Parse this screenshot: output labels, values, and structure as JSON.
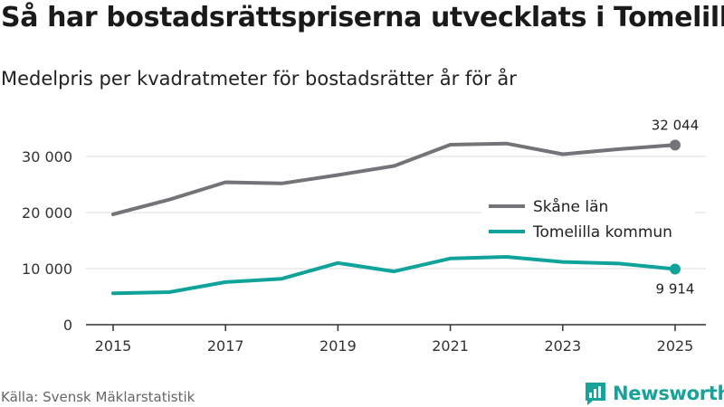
{
  "header": {
    "title": "Så har bostadsrättspriserna utvecklats i Tomelilla",
    "subtitle": "Medelpris per kvadratmeter för bostadsrätter år för år"
  },
  "footer": {
    "source": "Källa: Svensk Mäklarstatistik",
    "brand": "Newsworthy"
  },
  "colors": {
    "skane": "#747378",
    "tomelilla": "#10a39a",
    "grid": "#dddddd",
    "axis": "#333333",
    "brand": "#18a39a"
  },
  "chart_data": {
    "type": "line",
    "title": "Så har bostadsrättspriserna utvecklats i Tomelilla",
    "subtitle": "Medelpris per kvadratmeter för bostadsrätter år för år",
    "x": [
      2015,
      2016,
      2017,
      2018,
      2019,
      2020,
      2021,
      2022,
      2023,
      2024,
      2025
    ],
    "xticks": [
      2015,
      2017,
      2019,
      2021,
      2023,
      2025
    ],
    "xtick_labels": [
      "2015",
      "2017",
      "2019",
      "2021",
      "2023",
      "2025"
    ],
    "yticks": [
      0,
      10000,
      20000,
      30000
    ],
    "ytick_labels": [
      "0",
      "10 000",
      "20 000",
      "30 000"
    ],
    "xlim": [
      2015,
      2025
    ],
    "ylim": [
      0,
      35000
    ],
    "grid": true,
    "legend_position": "right",
    "series": [
      {
        "name": "Skåne län",
        "color": "#747378",
        "values": [
          19700,
          22300,
          25400,
          25200,
          26700,
          28300,
          32100,
          32300,
          30400,
          31300,
          32044
        ],
        "end_label": "32 044",
        "end_label_position": "above"
      },
      {
        "name": "Tomelilla kommun",
        "color": "#10a39a",
        "values": [
          5600,
          5800,
          7600,
          8200,
          11000,
          9500,
          11800,
          12100,
          11200,
          10900,
          9914
        ],
        "end_label": "9 914",
        "end_label_position": "below"
      }
    ]
  }
}
